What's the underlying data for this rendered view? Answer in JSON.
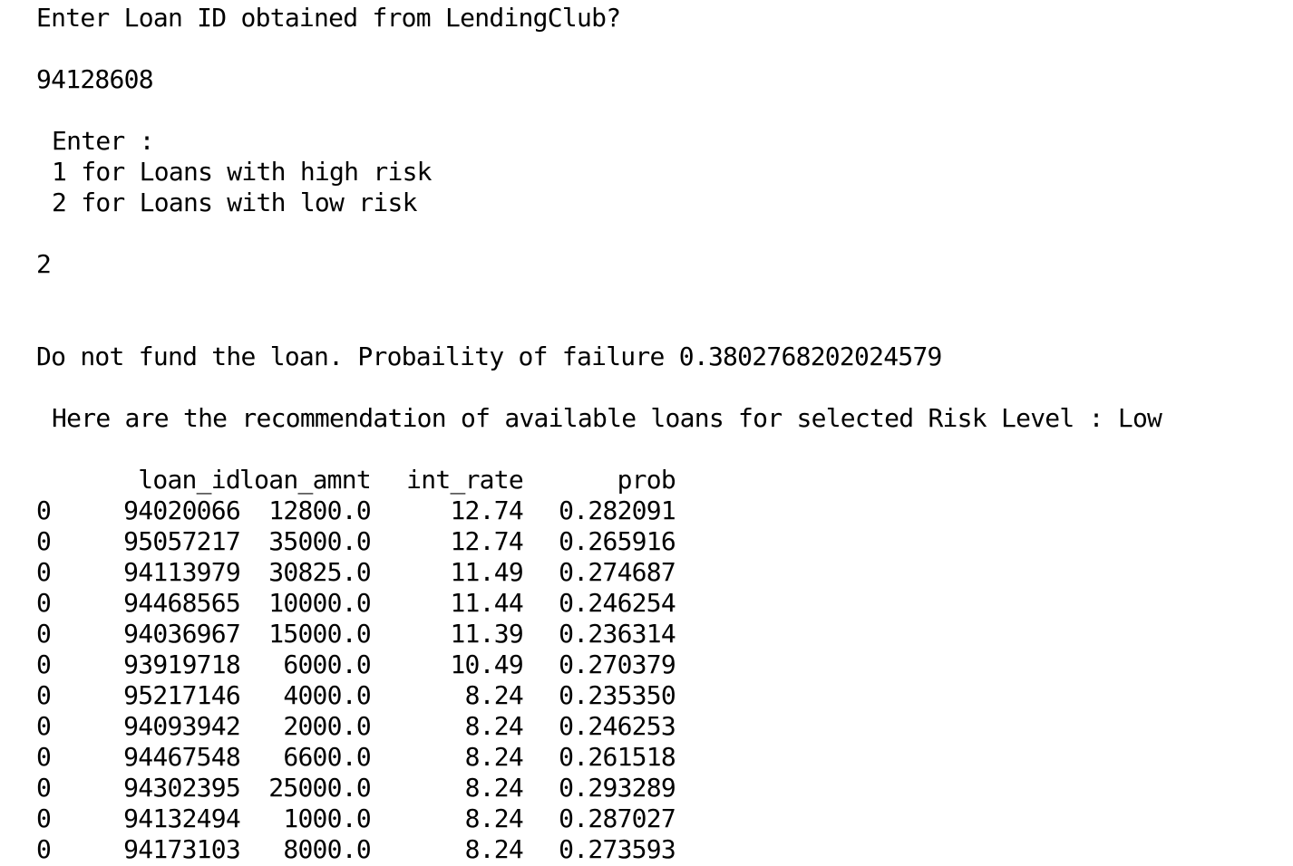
{
  "prompts": {
    "loan_id_prompt": "Enter Loan ID obtained from LendingClub?",
    "loan_id_input": "94128608",
    "risk_prompt_header": "Enter :",
    "risk_option_1": "1 for Loans with high risk",
    "risk_option_2": "2 for Loans with low risk",
    "risk_input": "2"
  },
  "results": {
    "decision": "Do not fund the loan. Probaility of failure 0.3802768202024579",
    "recommendation_header": "Here are the recommendation of available loans for selected Risk Level : Low"
  },
  "table": {
    "columns": [
      "loan_id",
      "loan_amnt",
      "int_rate",
      "prob"
    ],
    "rows": [
      {
        "index": "0",
        "loan_id": "94020066",
        "loan_amnt": "12800.0",
        "int_rate": "12.74",
        "prob": "0.282091"
      },
      {
        "index": "0",
        "loan_id": "95057217",
        "loan_amnt": "35000.0",
        "int_rate": "12.74",
        "prob": "0.265916"
      },
      {
        "index": "0",
        "loan_id": "94113979",
        "loan_amnt": "30825.0",
        "int_rate": "11.49",
        "prob": "0.274687"
      },
      {
        "index": "0",
        "loan_id": "94468565",
        "loan_amnt": "10000.0",
        "int_rate": "11.44",
        "prob": "0.246254"
      },
      {
        "index": "0",
        "loan_id": "94036967",
        "loan_amnt": "15000.0",
        "int_rate": "11.39",
        "prob": "0.236314"
      },
      {
        "index": "0",
        "loan_id": "93919718",
        "loan_amnt": "6000.0",
        "int_rate": "10.49",
        "prob": "0.270379"
      },
      {
        "index": "0",
        "loan_id": "95217146",
        "loan_amnt": "4000.0",
        "int_rate": "8.24",
        "prob": "0.235350"
      },
      {
        "index": "0",
        "loan_id": "94093942",
        "loan_amnt": "2000.0",
        "int_rate": "8.24",
        "prob": "0.246253"
      },
      {
        "index": "0",
        "loan_id": "94467548",
        "loan_amnt": "6600.0",
        "int_rate": "8.24",
        "prob": "0.261518"
      },
      {
        "index": "0",
        "loan_id": "94302395",
        "loan_amnt": "25000.0",
        "int_rate": "8.24",
        "prob": "0.293289"
      },
      {
        "index": "0",
        "loan_id": "94132494",
        "loan_amnt": "1000.0",
        "int_rate": "8.24",
        "prob": "0.287027"
      },
      {
        "index": "0",
        "loan_id": "94173103",
        "loan_amnt": "8000.0",
        "int_rate": "8.24",
        "prob": "0.273593"
      }
    ]
  }
}
